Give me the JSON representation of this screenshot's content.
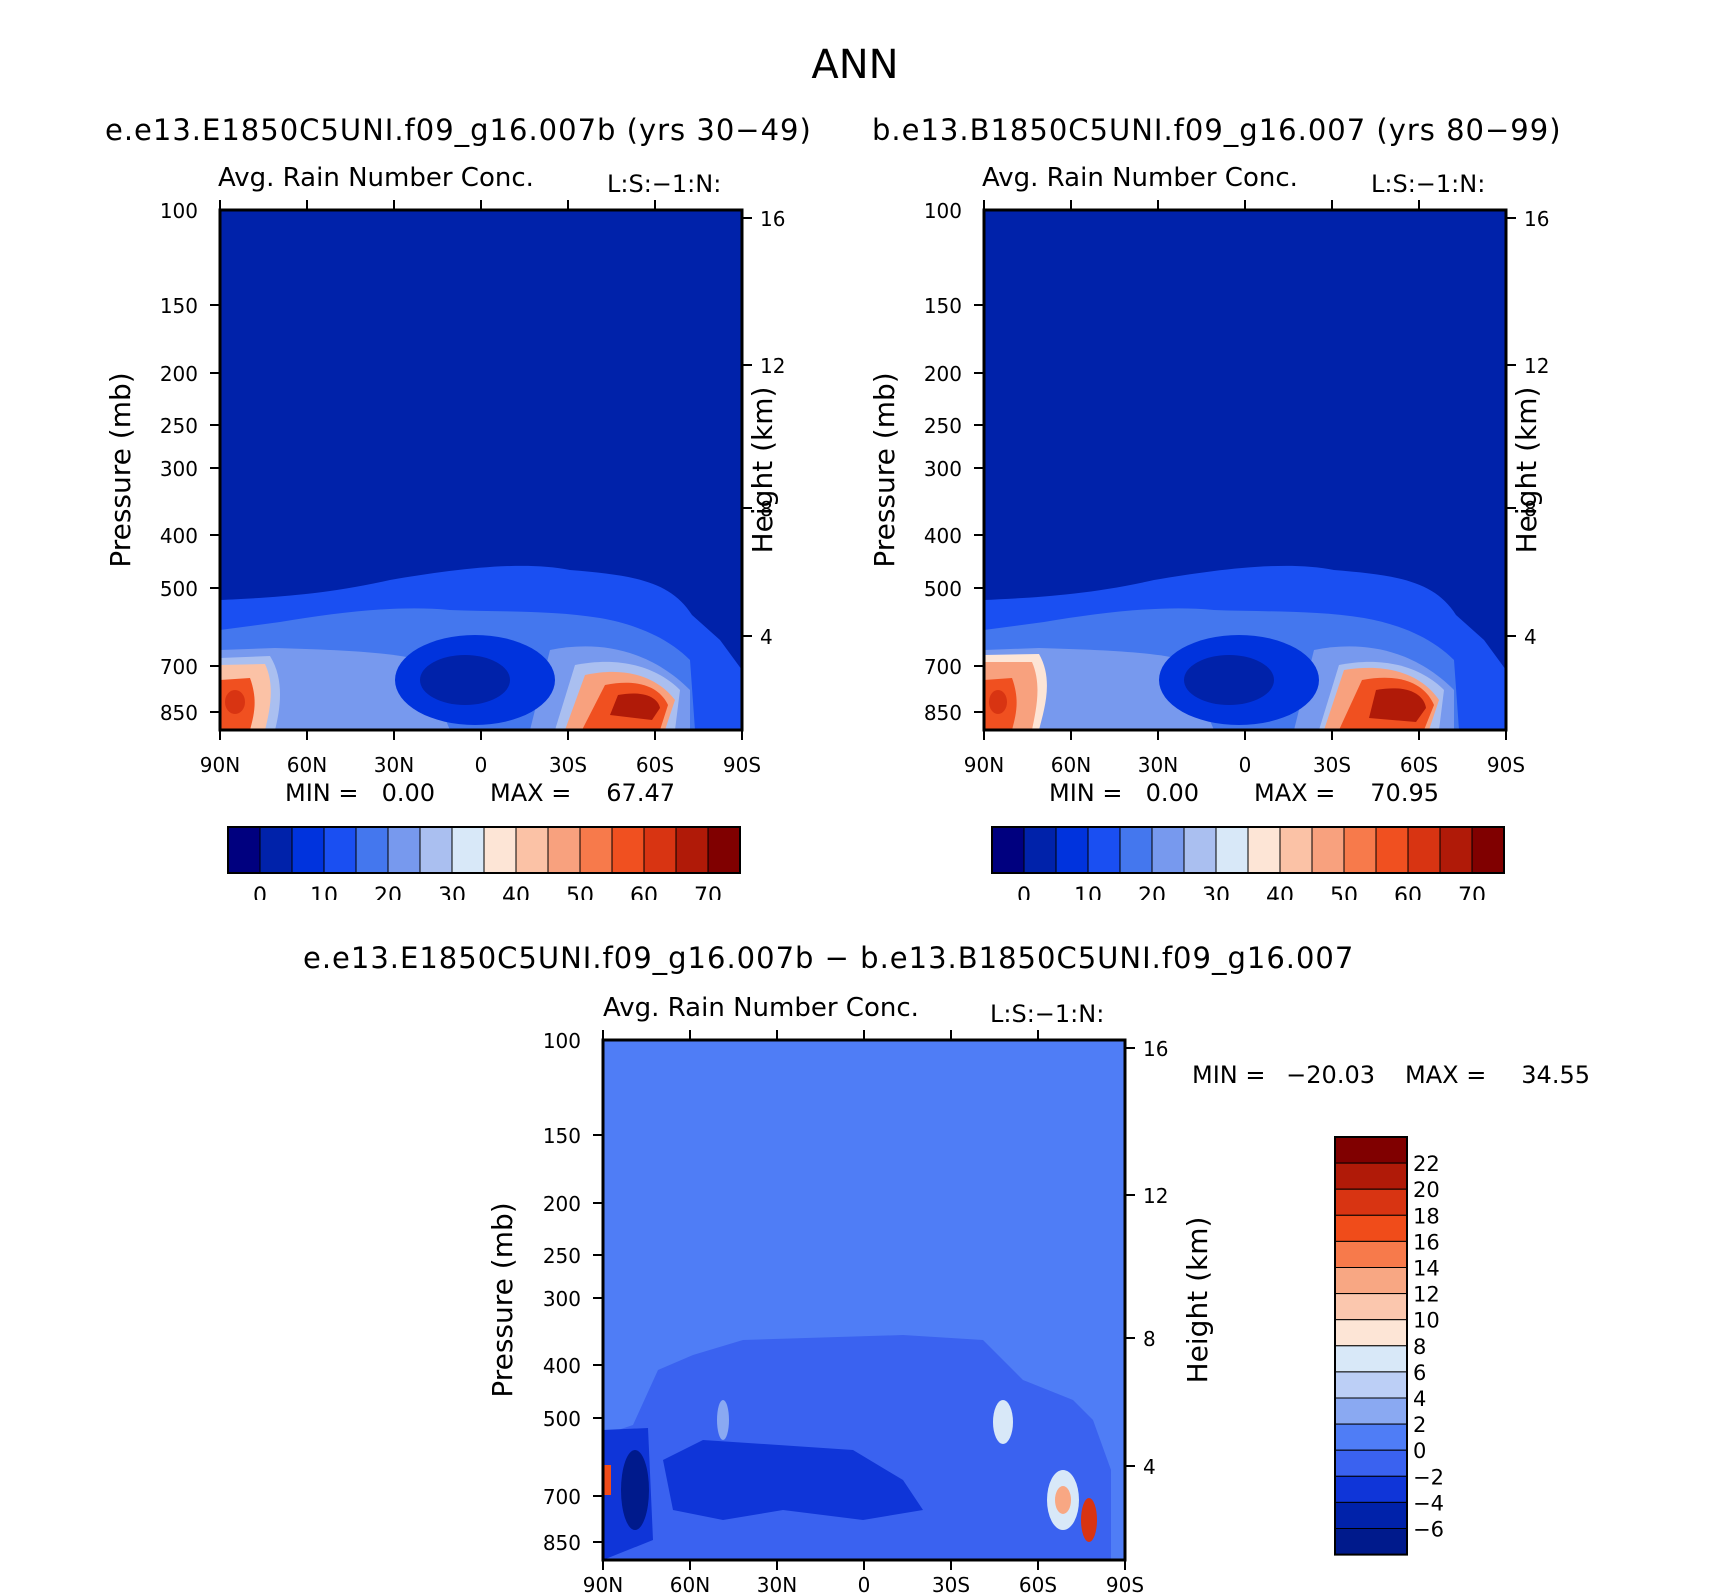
{
  "main_title": "ANN",
  "run_labels": {
    "left": "e.e13.E1850C5UNI.f09_g16.007b (yrs 30−49)",
    "right": "b.e13.B1850C5UNI.f09_g16.007 (yrs 80−99)",
    "diff": "e.e13.E1850C5UNI.f09_g16.007b − b.e13.B1850C5UNI.f09_g16.007"
  },
  "colors": {
    "abs_scale": [
      "#00007f",
      "#0022aa",
      "#0033dd",
      "#1a4ff2",
      "#4477ee",
      "#7799ee",
      "#aabff0",
      "#d8e8f8",
      "#fde5d6",
      "#fbc2a6",
      "#f8a17e",
      "#f77a4b",
      "#f05020",
      "#d83412",
      "#b01a08",
      "#800000"
    ],
    "diff_scale": [
      "#001a8c",
      "#0022aa",
      "#0f35d8",
      "#3a62f0",
      "#4f7df6",
      "#8aa9f2",
      "#bccff6",
      "#d8e8f8",
      "#fde5d6",
      "#fbc7ae",
      "#f8a783",
      "#f77a4b",
      "#f04c1a",
      "#d83412",
      "#b01a08",
      "#800000"
    ]
  },
  "chart_data": [
    {
      "type": "heatmap",
      "title": "Avg. Rain Number Conc.",
      "subtitle": "L:S:−1:N:",
      "xlabel": "",
      "ylabel": "Pressure (mb)",
      "y2label": "Height (km)",
      "x_ticks": [
        "90N",
        "60N",
        "30N",
        "0",
        "30S",
        "60S",
        "90S"
      ],
      "y_ticks": [
        "100",
        "150",
        "200",
        "250",
        "300",
        "400",
        "500",
        "700",
        "850"
      ],
      "y2_ticks": [
        "16",
        "12",
        "8",
        "4"
      ],
      "min_label": "MIN =",
      "min_value": "0.00",
      "max_label": "MAX =",
      "max_value": "67.47",
      "colorbar_labels": [
        "0",
        "10",
        "20",
        "30",
        "40",
        "50",
        "60",
        "70"
      ],
      "features": [
        {
          "lat": 87,
          "p": 720,
          "value": 65
        },
        {
          "lat": -52,
          "p": 730,
          "value": 67
        },
        {
          "lat": 3,
          "p": 710,
          "value": 5
        },
        {
          "lat": 65,
          "p": 700,
          "value": 42
        }
      ]
    },
    {
      "type": "heatmap",
      "title": "Avg. Rain Number Conc.",
      "subtitle": "L:S:−1:N:",
      "xlabel": "",
      "ylabel": "Pressure (mb)",
      "y2label": "Height (km)",
      "x_ticks": [
        "90N",
        "60N",
        "30N",
        "0",
        "30S",
        "60S",
        "90S"
      ],
      "y_ticks": [
        "100",
        "150",
        "200",
        "250",
        "300",
        "400",
        "500",
        "700",
        "850"
      ],
      "y2_ticks": [
        "16",
        "12",
        "8",
        "4"
      ],
      "min_label": "MIN =",
      "min_value": "0.00",
      "max_label": "MAX =",
      "max_value": "70.95",
      "colorbar_labels": [
        "0",
        "10",
        "20",
        "30",
        "40",
        "50",
        "60",
        "70"
      ],
      "features": [
        {
          "lat": 87,
          "p": 720,
          "value": 66
        },
        {
          "lat": -55,
          "p": 720,
          "value": 71
        },
        {
          "lat": 3,
          "p": 710,
          "value": 6
        },
        {
          "lat": 70,
          "p": 700,
          "value": 40
        }
      ]
    },
    {
      "type": "heatmap",
      "title": "Avg. Rain Number Conc.",
      "subtitle": "L:S:−1:N:",
      "xlabel": "",
      "ylabel": "Pressure (mb)",
      "y2label": "Height (km)",
      "x_ticks": [
        "90N",
        "60N",
        "30N",
        "0",
        "30S",
        "60S",
        "90S"
      ],
      "y_ticks": [
        "100",
        "150",
        "200",
        "250",
        "300",
        "400",
        "500",
        "700",
        "850"
      ],
      "y2_ticks": [
        "16",
        "12",
        "8",
        "4"
      ],
      "min_label": "MIN =",
      "min_value": "−20.03",
      "max_label": "MAX =",
      "max_value": "34.55",
      "colorbar_labels": [
        "22",
        "20",
        "18",
        "16",
        "14",
        "12",
        "10",
        "8",
        "6",
        "4",
        "2",
        "0",
        "−2",
        "−4",
        "−6"
      ],
      "features": [
        {
          "lat": -81,
          "p": 720,
          "value": 34
        },
        {
          "lat": 84,
          "p": 650,
          "value": -20
        },
        {
          "lat": -70,
          "p": 700,
          "value": 12
        }
      ]
    }
  ]
}
